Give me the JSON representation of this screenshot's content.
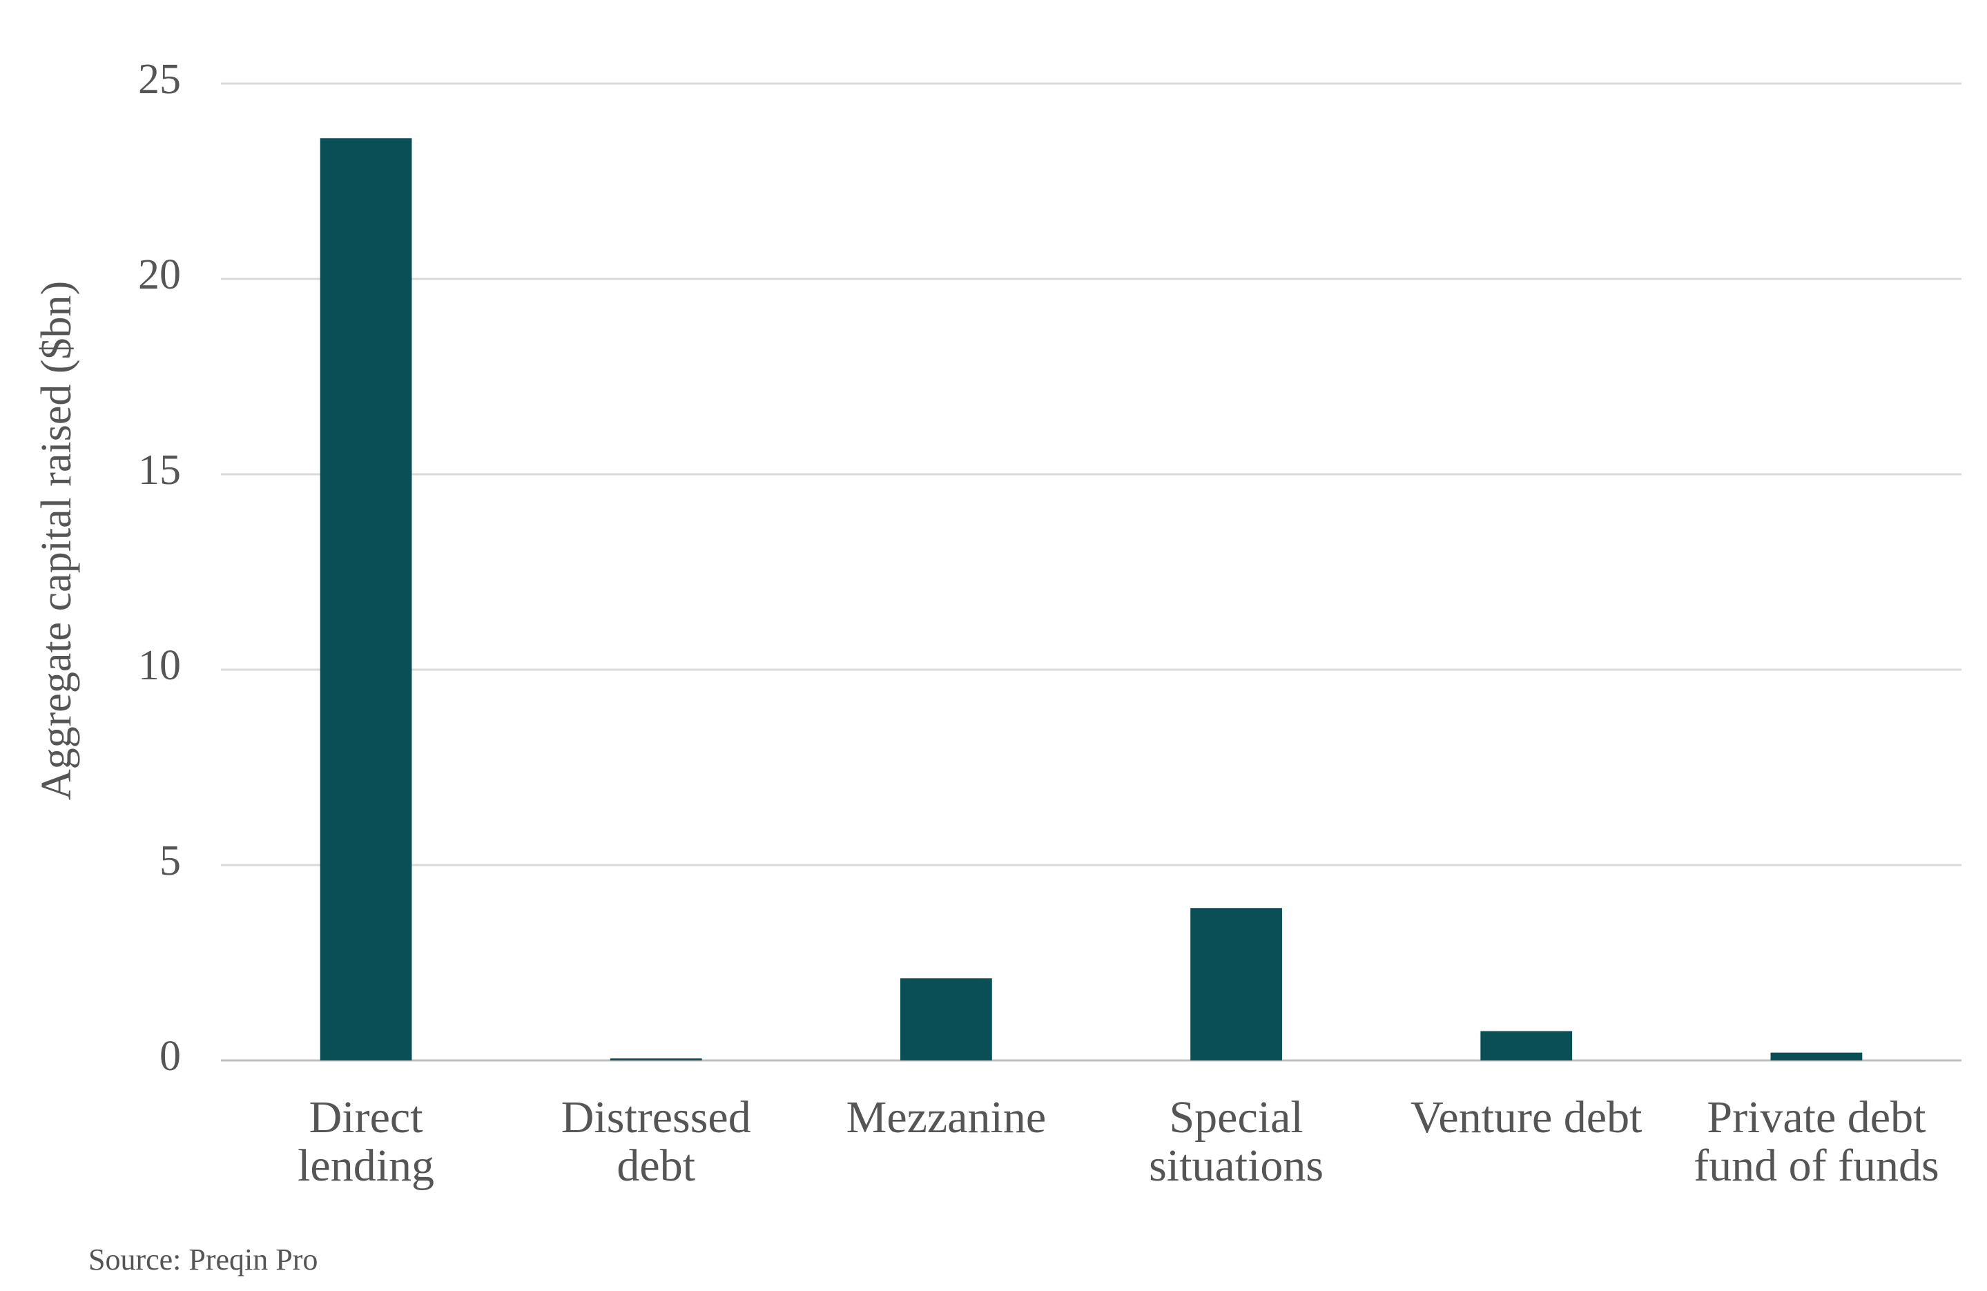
{
  "chart_data": {
    "type": "bar",
    "y_label": "Aggregate capital raised ($bn)",
    "source": "Source: Preqin Pro",
    "categories": [
      "Direct lending",
      "Distressed debt",
      "Mezzanine",
      "Special situations",
      "Venture debt",
      "Private debt fund of funds"
    ],
    "values": [
      23.6,
      0.05,
      2.1,
      3.9,
      0.75,
      0.2
    ],
    "color": "#0a4f55",
    "ylim": [
      0,
      25
    ],
    "yticks": [
      0,
      5,
      10,
      15,
      20,
      25
    ],
    "grid": true
  }
}
